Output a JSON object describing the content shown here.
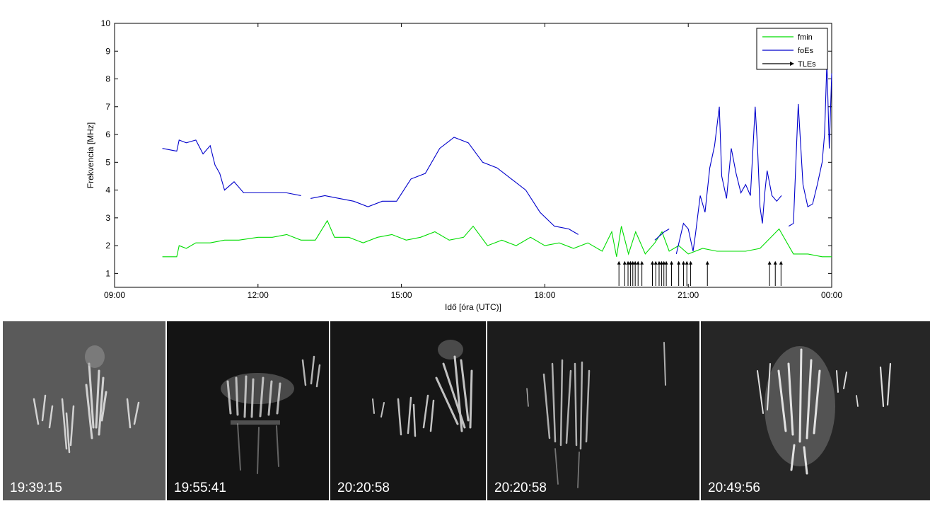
{
  "chart_data": {
    "type": "line",
    "xlabel": "Idő [óra (UTC)]",
    "ylabel": "Frekvencia [MHz]",
    "xlim": [
      9,
      24
    ],
    "ylim": [
      0.5,
      10
    ],
    "x_ticks": [
      9,
      12,
      15,
      18,
      21,
      24
    ],
    "x_tick_labels": [
      "09:00",
      "12:00",
      "15:00",
      "18:00",
      "21:00",
      "00:00"
    ],
    "y_ticks": [
      1,
      2,
      3,
      4,
      5,
      6,
      7,
      8,
      9,
      10
    ],
    "y_tick_labels": [
      "1",
      "2",
      "3",
      "4",
      "5",
      "6",
      "7",
      "8",
      "9",
      "10"
    ],
    "legend_position": "top-right",
    "series": [
      {
        "name": "fmin",
        "color": "#00dd00",
        "x": [
          10.0,
          10.3,
          10.35,
          10.5,
          10.7,
          11.0,
          11.3,
          11.6,
          12.0,
          12.3,
          12.6,
          12.9,
          13.2,
          13.45,
          13.6,
          13.9,
          14.2,
          14.5,
          14.8,
          15.1,
          15.4,
          15.7,
          16.0,
          16.3,
          16.5,
          16.8,
          17.1,
          17.4,
          17.7,
          18.0,
          18.3,
          18.6,
          18.9,
          19.2,
          19.4,
          19.5,
          19.6,
          19.75,
          19.9,
          20.1,
          20.3,
          20.45,
          20.6,
          20.8,
          21.0,
          21.3,
          21.6,
          21.9,
          22.2,
          22.5,
          22.9,
          23.2,
          23.5,
          23.8,
          24.0
        ],
        "y": [
          1.6,
          1.6,
          2.0,
          1.9,
          2.1,
          2.1,
          2.2,
          2.2,
          2.3,
          2.3,
          2.4,
          2.2,
          2.2,
          2.9,
          2.3,
          2.3,
          2.1,
          2.3,
          2.4,
          2.2,
          2.3,
          2.5,
          2.2,
          2.3,
          2.7,
          2.0,
          2.2,
          2.0,
          2.3,
          2.0,
          2.1,
          1.9,
          2.1,
          1.8,
          2.5,
          1.6,
          2.7,
          1.7,
          2.5,
          1.7,
          2.1,
          2.5,
          1.8,
          2.0,
          1.7,
          1.9,
          1.8,
          1.8,
          1.8,
          1.9,
          2.6,
          1.7,
          1.7,
          1.6,
          1.6
        ]
      },
      {
        "name": "foEs",
        "color": "#0000cc",
        "segments": [
          {
            "x": [
              10.0,
              10.3,
              10.35,
              10.5,
              10.7,
              10.85,
              11.0,
              11.1,
              11.2,
              11.3,
              11.5,
              11.7,
              12.0,
              12.3,
              12.6,
              12.9
            ],
            "y": [
              5.5,
              5.4,
              5.8,
              5.7,
              5.8,
              5.3,
              5.6,
              4.9,
              4.6,
              4.0,
              4.3,
              3.9,
              3.9,
              3.9,
              3.9,
              3.8
            ]
          },
          {
            "x": [
              13.1,
              13.4,
              13.7,
              14.0,
              14.3,
              14.6,
              14.9,
              15.2,
              15.5,
              15.8,
              16.1,
              16.4,
              16.7,
              17.0,
              17.3,
              17.6,
              17.9,
              18.2,
              18.5,
              18.7
            ],
            "y": [
              3.7,
              3.8,
              3.7,
              3.6,
              3.4,
              3.6,
              3.6,
              4.4,
              4.6,
              5.5,
              5.9,
              5.7,
              5.0,
              4.8,
              4.4,
              4.0,
              3.2,
              2.7,
              2.6,
              2.4
            ]
          },
          {
            "x": [
              20.3,
              20.5,
              20.6
            ],
            "y": [
              2.2,
              2.5,
              2.6
            ]
          },
          {
            "x": [
              20.75,
              20.9,
              21.0,
              21.1,
              21.15,
              21.25,
              21.35,
              21.45,
              21.55,
              21.65,
              21.7,
              21.8,
              21.9,
              22.0,
              22.1,
              22.2,
              22.3,
              22.4,
              22.45,
              22.5,
              22.55,
              22.6,
              22.65,
              22.75,
              22.85,
              22.95
            ],
            "y": [
              1.7,
              2.8,
              2.6,
              1.8,
              2.4,
              3.8,
              3.2,
              4.8,
              5.6,
              7.0,
              4.5,
              3.7,
              5.5,
              4.6,
              3.9,
              4.2,
              3.8,
              7.0,
              5.5,
              3.4,
              2.8,
              3.9,
              4.7,
              3.8,
              3.6,
              3.8
            ]
          },
          {
            "x": [
              23.1,
              23.2,
              23.3,
              23.4,
              23.5,
              23.6,
              23.7,
              23.8,
              23.85,
              23.9,
              23.95,
              24.0
            ],
            "y": [
              2.7,
              2.8,
              7.1,
              4.2,
              3.4,
              3.5,
              4.2,
              5.0,
              6.0,
              8.6,
              5.5,
              8.2
            ]
          }
        ]
      },
      {
        "name": "TLEs",
        "color": "#000000",
        "marker": "arrow",
        "x": [
          19.55,
          19.67,
          19.74,
          19.79,
          19.84,
          19.89,
          19.95,
          20.03,
          20.25,
          20.32,
          20.39,
          20.44,
          20.49,
          20.54,
          20.65,
          20.8,
          20.9,
          20.97,
          21.05,
          21.4,
          22.7,
          22.82,
          22.94
        ]
      }
    ]
  },
  "photos": [
    {
      "time": "19:39:15"
    },
    {
      "time": "19:55:41"
    },
    {
      "time": "20:20:58"
    },
    {
      "time": "20:20:58"
    },
    {
      "time": "20:49:56"
    }
  ]
}
